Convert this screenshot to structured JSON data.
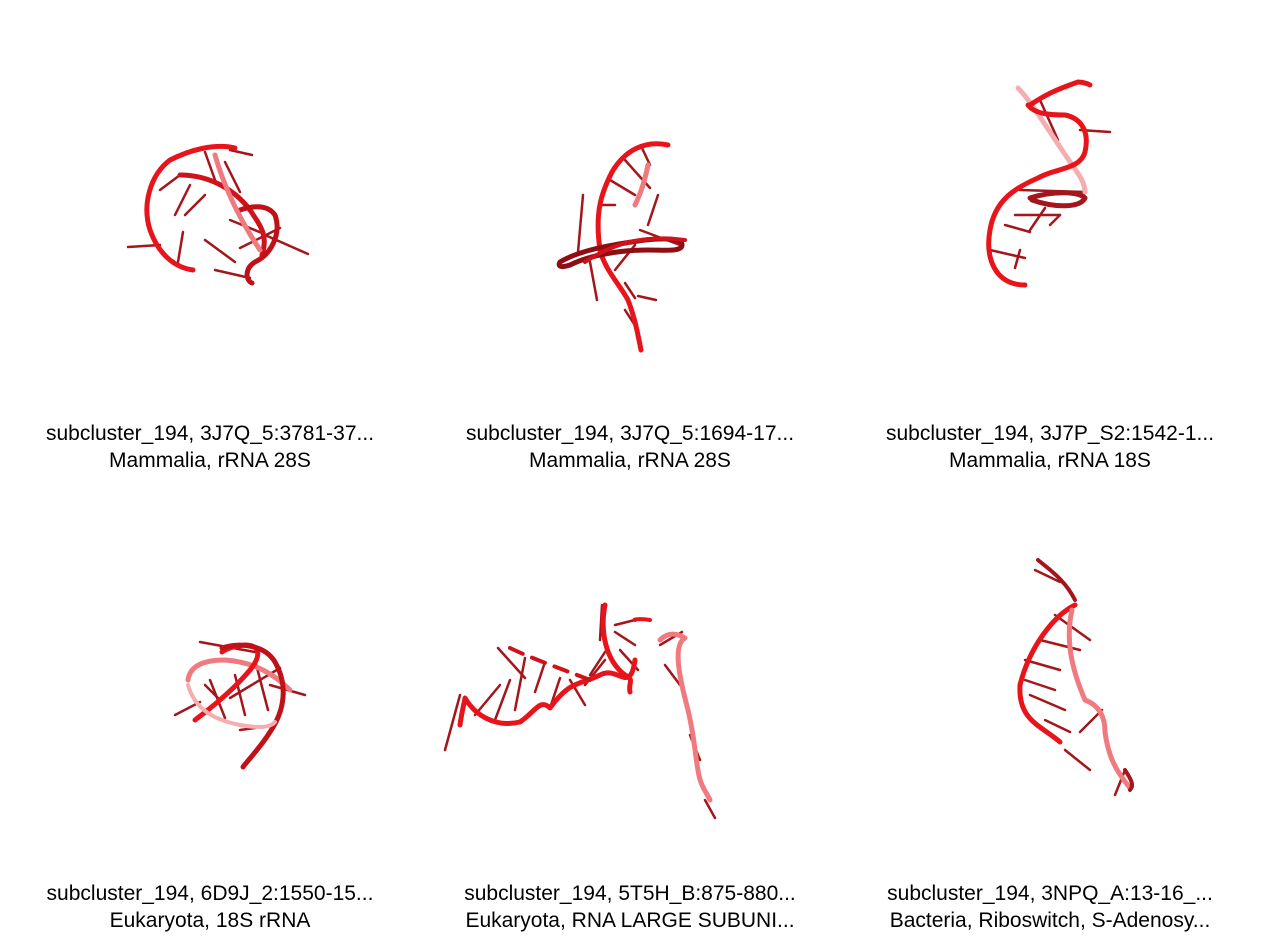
{
  "panels": [
    {
      "title": "subcluster_194, 3J7Q_5:3781-37...",
      "subtitle": "Mammalia, rRNA 28S",
      "icon": "rna-structure-icon",
      "color": "#e8141b"
    },
    {
      "title": "subcluster_194, 3J7Q_5:1694-17...",
      "subtitle": "Mammalia, rRNA 28S",
      "icon": "rna-structure-icon",
      "color": "#e8141b"
    },
    {
      "title": "subcluster_194, 3J7P_S2:1542-1...",
      "subtitle": "Mammalia, rRNA 18S",
      "icon": "rna-structure-icon",
      "color": "#e8141b"
    },
    {
      "title": "subcluster_194, 6D9J_2:1550-15...",
      "subtitle": "Eukaryota, 18S rRNA",
      "icon": "rna-structure-icon",
      "color": "#e8141b"
    },
    {
      "title": "subcluster_194, 5T5H_B:875-880...",
      "subtitle": "Eukaryota, RNA LARGE SUBUNI...",
      "icon": "rna-structure-icon",
      "color": "#e8141b"
    },
    {
      "title": "subcluster_194, 3NPQ_A:13-16_...",
      "subtitle": "Bacteria, Riboswitch, S-Adenosy...",
      "icon": "rna-structure-icon",
      "color": "#e8141b"
    }
  ]
}
